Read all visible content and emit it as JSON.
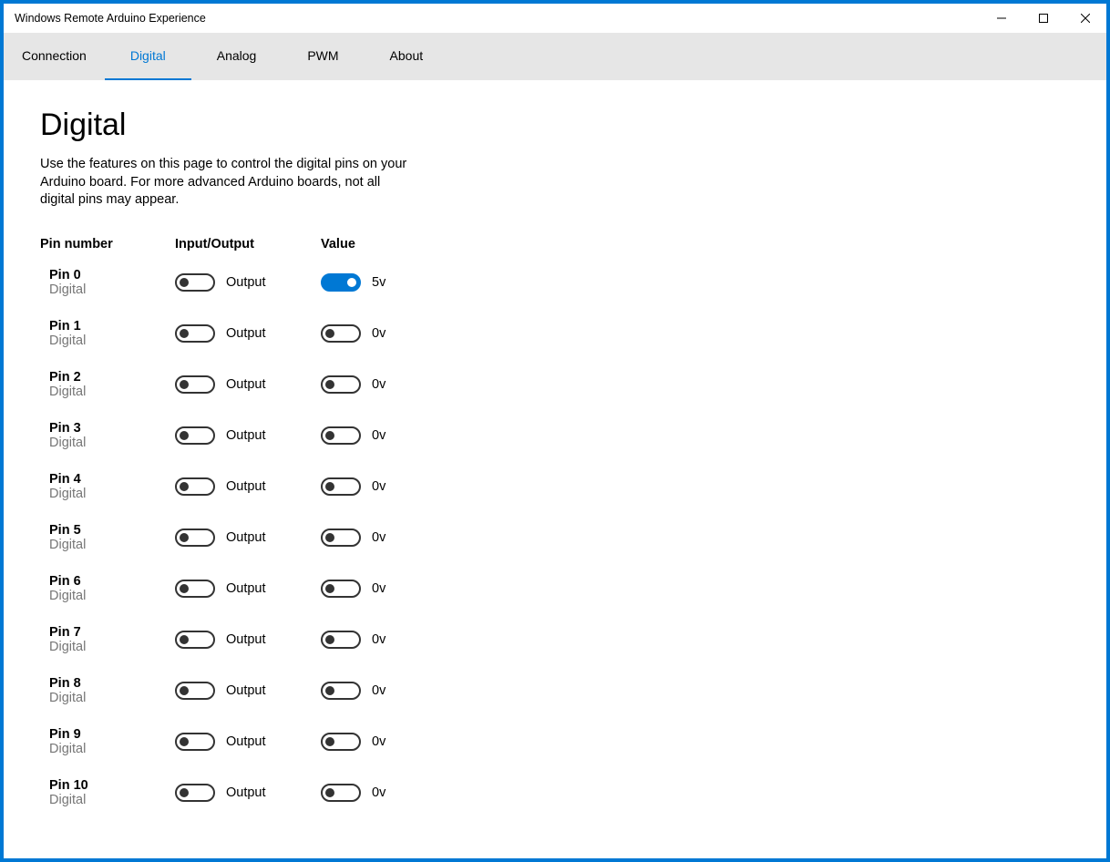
{
  "window": {
    "title": "Windows Remote Arduino Experience"
  },
  "tabs": [
    {
      "label": "Connection",
      "active": false
    },
    {
      "label": "Digital",
      "active": true
    },
    {
      "label": "Analog",
      "active": false
    },
    {
      "label": "PWM",
      "active": false
    },
    {
      "label": "About",
      "active": false
    }
  ],
  "page": {
    "title": "Digital",
    "description": "Use the features on this page to control the digital pins on your Arduino board. For more advanced Arduino boards, not all digital pins may appear."
  },
  "headers": {
    "pin": "Pin number",
    "io": "Input/Output",
    "value": "Value"
  },
  "pins": [
    {
      "name": "Pin 0",
      "type": "Digital",
      "io_label": "Output",
      "io_on": false,
      "value_label": "5v",
      "value_on": true
    },
    {
      "name": "Pin 1",
      "type": "Digital",
      "io_label": "Output",
      "io_on": false,
      "value_label": "0v",
      "value_on": false
    },
    {
      "name": "Pin 2",
      "type": "Digital",
      "io_label": "Output",
      "io_on": false,
      "value_label": "0v",
      "value_on": false
    },
    {
      "name": "Pin 3",
      "type": "Digital",
      "io_label": "Output",
      "io_on": false,
      "value_label": "0v",
      "value_on": false
    },
    {
      "name": "Pin 4",
      "type": "Digital",
      "io_label": "Output",
      "io_on": false,
      "value_label": "0v",
      "value_on": false
    },
    {
      "name": "Pin 5",
      "type": "Digital",
      "io_label": "Output",
      "io_on": false,
      "value_label": "0v",
      "value_on": false
    },
    {
      "name": "Pin 6",
      "type": "Digital",
      "io_label": "Output",
      "io_on": false,
      "value_label": "0v",
      "value_on": false
    },
    {
      "name": "Pin 7",
      "type": "Digital",
      "io_label": "Output",
      "io_on": false,
      "value_label": "0v",
      "value_on": false
    },
    {
      "name": "Pin 8",
      "type": "Digital",
      "io_label": "Output",
      "io_on": false,
      "value_label": "0v",
      "value_on": false
    },
    {
      "name": "Pin 9",
      "type": "Digital",
      "io_label": "Output",
      "io_on": false,
      "value_label": "0v",
      "value_on": false
    },
    {
      "name": "Pin 10",
      "type": "Digital",
      "io_label": "Output",
      "io_on": false,
      "value_label": "0v",
      "value_on": false
    }
  ],
  "colors": {
    "accent": "#0078d4",
    "tab_bg": "#e6e6e6",
    "text_muted": "#767676",
    "desktop": "#0078d4"
  }
}
